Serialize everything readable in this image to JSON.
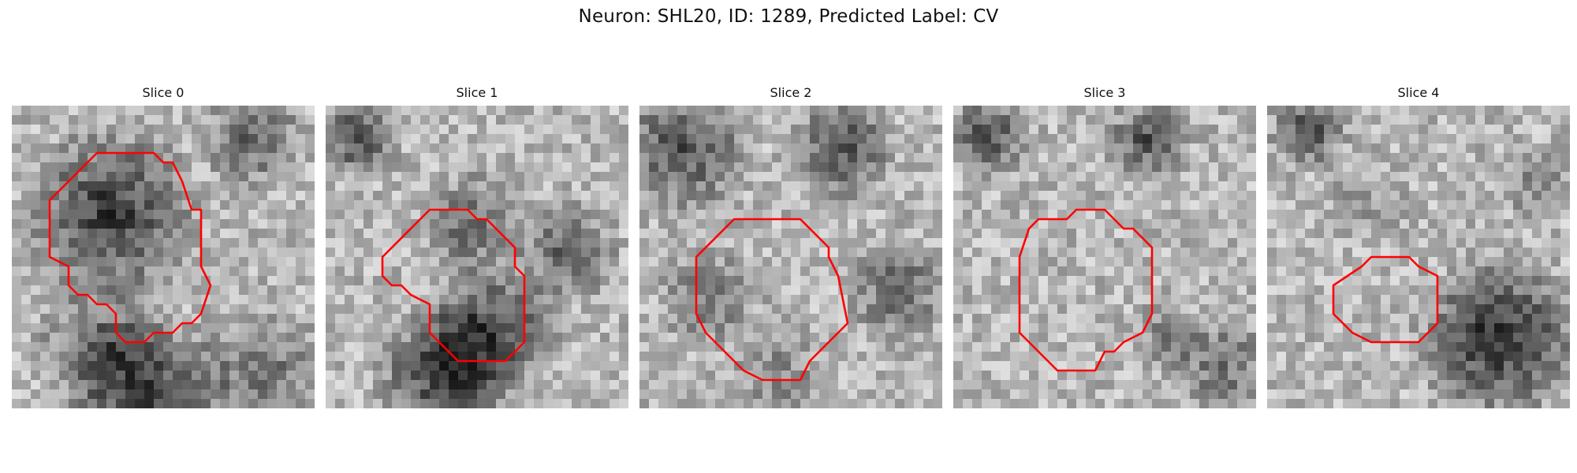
{
  "figure": {
    "title": "Neuron: SHL20, ID: 1289, Predicted Label: CV"
  },
  "outline_color": "#ff0000",
  "panels": [
    {
      "title": "Slice 0"
    },
    {
      "title": "Slice 1"
    },
    {
      "title": "Slice 2"
    },
    {
      "title": "Slice 3"
    },
    {
      "title": "Slice 4"
    }
  ]
}
